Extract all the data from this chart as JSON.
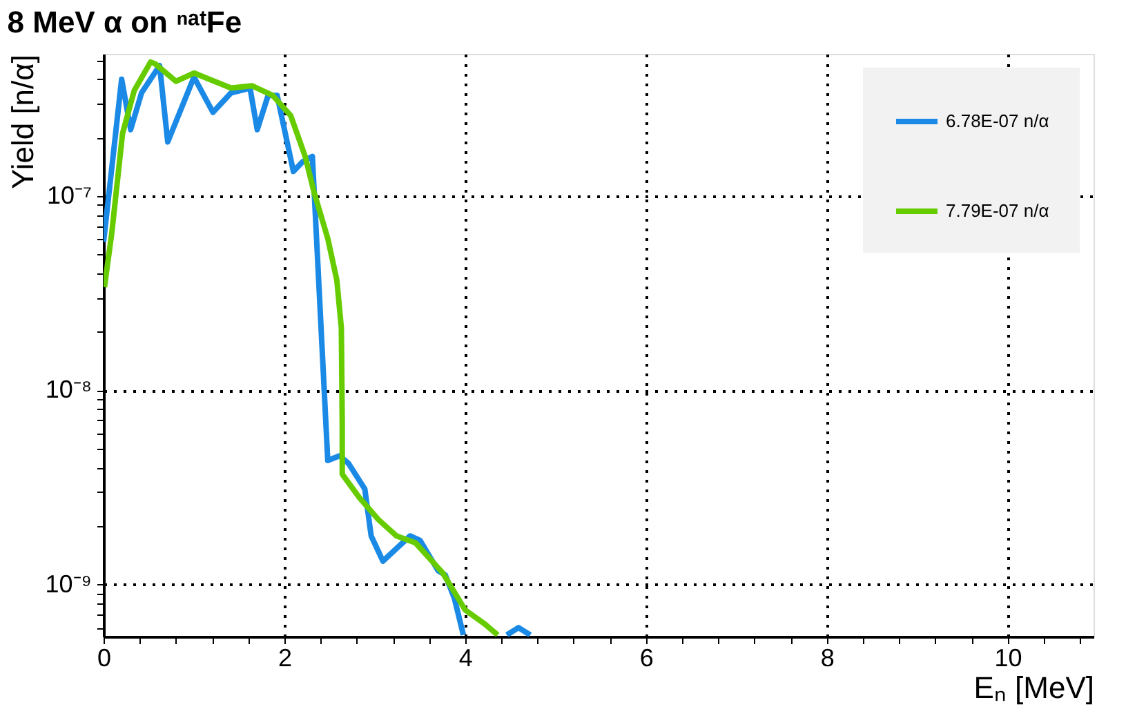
{
  "chart_data": {
    "type": "line",
    "title": "8 MeV α on ⁿᵃᵗFe",
    "xlabel": "Eₙ [MeV]",
    "ylabel": "Yield [n/α]",
    "log": "y",
    "grid": true,
    "legend": "top right",
    "line_style": "solid",
    "marker": "none",
    "xlim": [
      0,
      10.95
    ],
    "ylim": [
      5.4e-10,
      5.4e-07
    ],
    "xticks": [
      0,
      {
        "value": 0.4,
        "label": null
      },
      {
        "value": 0.8,
        "label": null
      },
      {
        "value": 1.2,
        "label": null
      },
      {
        "value": 1.6,
        "label": null
      },
      2,
      {
        "value": 2.4,
        "label": null
      },
      {
        "value": 2.8,
        "label": null
      },
      {
        "value": 3.2,
        "label": null
      },
      {
        "value": 3.6,
        "label": null
      },
      4,
      {
        "value": 4.4,
        "label": null
      },
      {
        "value": 4.8,
        "label": null
      },
      {
        "value": 5.2,
        "label": null
      },
      {
        "value": 5.6,
        "label": null
      },
      6,
      {
        "value": 6.4,
        "label": null
      },
      {
        "value": 6.8,
        "label": null
      },
      {
        "value": 7.2,
        "label": null
      },
      {
        "value": 7.6,
        "label": null
      },
      8,
      {
        "value": 8.4,
        "label": null
      },
      {
        "value": 8.8,
        "label": null
      },
      {
        "value": 9.2,
        "label": null
      },
      {
        "value": 9.6,
        "label": null
      },
      10,
      {
        "value": 10.4,
        "label": null
      },
      {
        "value": 10.8,
        "label": null
      }
    ],
    "yticks": [
      {
        "value": 6e-10,
        "label": null
      },
      {
        "value": 7e-10,
        "label": null
      },
      {
        "value": 8e-10,
        "label": null
      },
      {
        "value": 9e-10,
        "label": null
      },
      {
        "value": 1e-09,
        "label": "10⁻⁹"
      },
      {
        "value": 2e-09,
        "label": null
      },
      {
        "value": 3e-09,
        "label": null
      },
      {
        "value": 4e-09,
        "label": null
      },
      {
        "value": 5e-09,
        "label": null
      },
      {
        "value": 6e-09,
        "label": null
      },
      {
        "value": 7e-09,
        "label": null
      },
      {
        "value": 8e-09,
        "label": null
      },
      {
        "value": 9e-09,
        "label": null
      },
      {
        "value": 1e-08,
        "label": "10⁻⁸"
      },
      {
        "value": 2e-08,
        "label": null
      },
      {
        "value": 3e-08,
        "label": null
      },
      {
        "value": 4e-08,
        "label": null
      },
      {
        "value": 5e-08,
        "label": null
      },
      {
        "value": 6e-08,
        "label": null
      },
      {
        "value": 7e-08,
        "label": null
      },
      {
        "value": 8e-08,
        "label": null
      },
      {
        "value": 9e-08,
        "label": null
      },
      {
        "value": 1e-07,
        "label": "10⁻⁷"
      },
      {
        "value": 2e-07,
        "label": null
      },
      {
        "value": 3e-07,
        "label": null
      },
      {
        "value": 4e-07,
        "label": null
      },
      {
        "value": 5e-07,
        "label": null
      }
    ],
    "series": [
      {
        "name": "6.78E-07 n/α",
        "color": "#1a8ae6",
        "x": [
          0,
          0.2,
          0.3,
          0.42,
          0.62,
          0.71,
          1.0,
          1.21,
          1.41,
          1.62,
          1.7,
          1.82,
          1.92,
          2.1,
          2.2,
          2.31,
          2.48,
          2.61,
          2.71,
          2.89,
          2.96,
          3.09,
          3.39,
          3.5,
          3.7,
          3.78,
          3.88,
          3.98,
          4.2,
          4.46,
          4.59,
          4.72
        ],
        "values": [
          5.8e-08,
          4e-07,
          2.2e-07,
          3.4e-07,
          4.7e-07,
          1.9e-07,
          4.1e-07,
          2.7e-07,
          3.4e-07,
          3.6e-07,
          2.2e-07,
          3.3e-07,
          3.3e-07,
          1.34e-07,
          1.5e-07,
          1.6e-07,
          4.35e-09,
          4.6e-09,
          4.2e-09,
          3.1e-09,
          1.78e-09,
          1.32e-09,
          1.78e-09,
          1.69e-09,
          1.18e-09,
          1.12e-09,
          8.5e-10,
          5.5e-10,
          null,
          5.5e-10,
          6e-10,
          5.5e-10
        ]
      },
      {
        "name": "7.79E-07 n/α",
        "color": "#66cc00",
        "x": [
          0.01,
          0.09,
          0.21,
          0.34,
          0.52,
          0.57,
          0.8,
          1.0,
          1.41,
          1.64,
          1.87,
          2.07,
          2.23,
          2.33,
          2.48,
          2.58,
          2.63,
          2.64,
          2.64,
          2.83,
          3.04,
          3.24,
          3.45,
          3.75,
          4.0,
          4.21,
          4.36
        ],
        "values": [
          3.4e-08,
          6.4e-08,
          2.1e-07,
          3.5e-07,
          4.9e-07,
          4.8e-07,
          3.9e-07,
          4.3e-07,
          3.6e-07,
          3.7e-07,
          3.3e-07,
          2.6e-07,
          1.6e-07,
          1.04e-07,
          6.05e-08,
          3.7e-08,
          2.1e-08,
          6.8e-09,
          3.7e-09,
          2.8e-09,
          2.16e-09,
          1.78e-09,
          1.64e-09,
          1.15e-09,
          7.4e-10,
          6.3e-10,
          5.5e-10
        ]
      }
    ]
  }
}
